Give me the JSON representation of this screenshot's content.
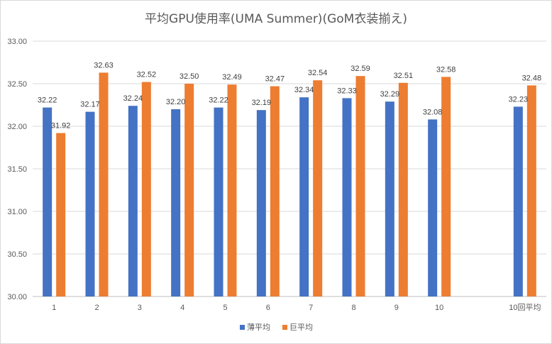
{
  "chart_data": {
    "type": "bar",
    "title": "平均GPU使用率(UMA Summer)(GoM衣装揃え)",
    "xlabel": "",
    "ylabel": "",
    "ylim": [
      30.0,
      33.0
    ],
    "yticks": [
      "30.00",
      "30.50",
      "31.00",
      "31.50",
      "32.00",
      "32.50",
      "33.00"
    ],
    "grid": true,
    "legend_position": "bottom",
    "categories": [
      "1",
      "2",
      "3",
      "4",
      "5",
      "6",
      "7",
      "8",
      "9",
      "10",
      "",
      "10回平均"
    ],
    "series": [
      {
        "name": "薄平均",
        "color": "#4472c4",
        "values": [
          32.22,
          32.17,
          32.24,
          32.2,
          32.22,
          32.19,
          32.34,
          32.33,
          32.29,
          32.08,
          null,
          32.23
        ],
        "labels": [
          "32.22",
          "32.17",
          "32.24",
          "32.20",
          "32.22",
          "32.19",
          "32.34",
          "32.33",
          "32.29",
          "32.08",
          "",
          "32.23"
        ]
      },
      {
        "name": "巨平均",
        "color": "#ed7d31",
        "values": [
          31.92,
          32.63,
          32.52,
          32.5,
          32.49,
          32.47,
          32.54,
          32.59,
          32.51,
          32.58,
          null,
          32.48
        ],
        "labels": [
          "31.92",
          "32.63",
          "32.52",
          "32.50",
          "32.49",
          "32.47",
          "32.54",
          "32.59",
          "32.51",
          "32.58",
          "",
          "32.48"
        ]
      }
    ]
  }
}
